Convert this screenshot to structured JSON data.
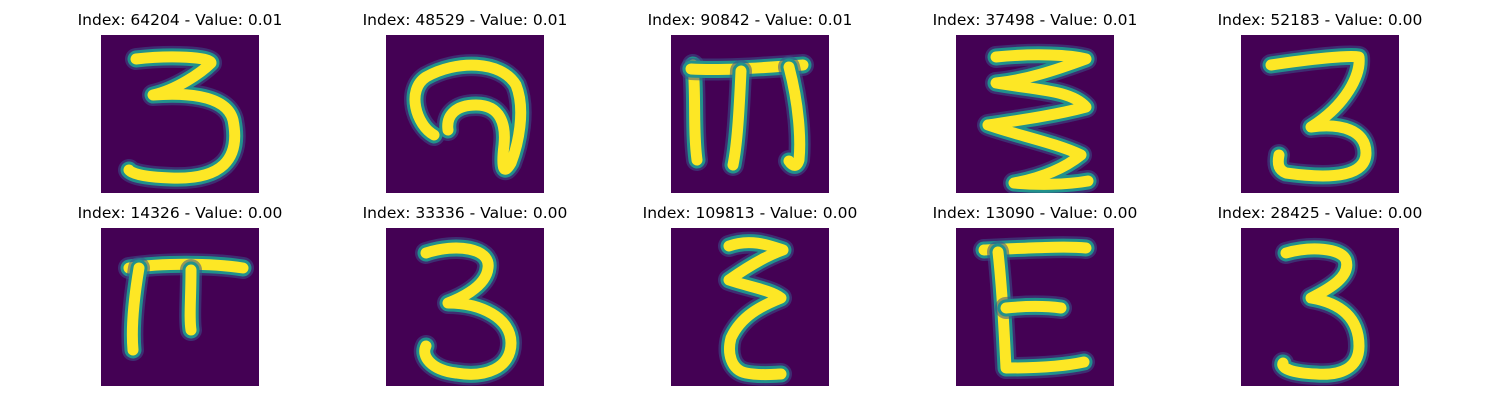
{
  "panels": [
    {
      "index": "64204",
      "value": "0.01",
      "title": "Index: 64204 - Value: 0.01",
      "glyph": "three-open-digit"
    },
    {
      "index": "48529",
      "value": "0.01",
      "title": "Index: 48529 - Value: 0.01",
      "glyph": "curled-hook-character"
    },
    {
      "index": "90842",
      "value": "0.01",
      "title": "Index: 90842 - Value: 0.01",
      "glyph": "m-shaped-character"
    },
    {
      "index": "37498",
      "value": "0.01",
      "title": "Index: 37498 - Value: 0.01",
      "glyph": "zigzag-character"
    },
    {
      "index": "52183",
      "value": "0.00",
      "title": "Index: 52183 - Value: 0.00",
      "glyph": "three-digit"
    },
    {
      "index": "14326",
      "value": "0.00",
      "title": "Index: 14326 - Value: 0.00",
      "glyph": "pi-shaped-character"
    },
    {
      "index": "33336",
      "value": "0.00",
      "title": "Index: 33336 - Value: 0.00",
      "glyph": "three-digit"
    },
    {
      "index": "109813",
      "value": "0.00",
      "title": "Index: 109813 - Value: 0.00",
      "glyph": "epsilon-shaped-character"
    },
    {
      "index": "13090",
      "value": "0.00",
      "title": "Index: 13090 - Value: 0.00",
      "glyph": "e-shaped-character"
    },
    {
      "index": "28425",
      "value": "0.00",
      "title": "Index: 28425 - Value: 0.00",
      "glyph": "three-digit"
    }
  ],
  "colors": {
    "background": "#440154",
    "stroke_core": "#fde725",
    "stroke_halo": "#21918c",
    "stroke_outer": "#3b528b"
  }
}
